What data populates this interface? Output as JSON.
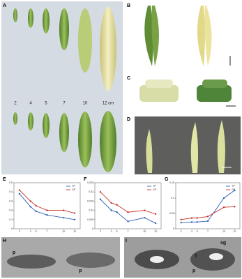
{
  "panels": [
    "A",
    "B",
    "C",
    "D",
    "E",
    "F",
    "G",
    "H",
    "I"
  ],
  "pod_lengths": [
    "2",
    "4",
    "5",
    "7",
    "10",
    "12 cm"
  ],
  "tem_labels": {
    "h": [
      "p",
      "p"
    ],
    "i": [
      "t",
      "sg",
      "p"
    ]
  },
  "chart_data": [
    {
      "type": "line",
      "x": [
        2,
        4,
        5,
        7,
        10,
        12
      ],
      "xlim": [
        1,
        13
      ],
      "xticks": [
        2,
        4,
        5,
        7,
        10,
        12
      ],
      "ylim": [
        0,
        0.5
      ],
      "yticks": [
        0,
        0.1,
        0.2,
        0.3,
        0.4,
        0.5
      ],
      "legend": "upper right",
      "series": [
        {
          "name": "YP",
          "color": "#2e5fb5",
          "values": [
            0.38,
            0.24,
            0.19,
            0.15,
            0.12,
            0.1
          ]
        },
        {
          "name": "GP",
          "color": "#c8302c",
          "values": [
            0.42,
            0.3,
            0.25,
            0.2,
            0.2,
            0.17
          ]
        }
      ]
    },
    {
      "type": "line",
      "x": [
        2,
        4,
        5,
        7,
        10,
        12
      ],
      "xlim": [
        1,
        13
      ],
      "xticks": [
        2,
        4,
        5,
        7,
        10,
        12
      ],
      "ylim": [
        0,
        0.025
      ],
      "yticks": [
        0,
        0.005,
        0.01,
        0.015,
        0.02,
        0.025
      ],
      "legend": "upper right",
      "series": [
        {
          "name": "YP",
          "color": "#2e5fb5",
          "values": [
            0.016,
            0.01,
            0.009,
            0.004,
            0.006,
            0.003
          ]
        },
        {
          "name": "GP",
          "color": "#c8302c",
          "values": [
            0.02,
            0.014,
            0.013,
            0.009,
            0.01,
            0.008
          ]
        }
      ]
    },
    {
      "type": "line",
      "x": [
        2,
        4,
        5,
        7,
        10,
        12
      ],
      "xlim": [
        1,
        13
      ],
      "xticks": [
        2,
        4,
        5,
        7,
        10,
        12
      ],
      "ylim": [
        0,
        0.15
      ],
      "yticks": [
        0,
        0.05,
        0.1,
        0.15
      ],
      "legend": "upper right",
      "series": [
        {
          "name": "YP",
          "color": "#2e5fb5",
          "values": [
            0.02,
            0.022,
            0.022,
            0.025,
            0.1,
            0.125
          ]
        },
        {
          "name": "GP",
          "color": "#c8302c",
          "values": [
            0.03,
            0.035,
            0.035,
            0.04,
            0.07,
            0.072
          ]
        }
      ]
    }
  ]
}
